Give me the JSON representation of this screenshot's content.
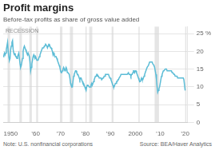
{
  "chart_data": {
    "type": "line",
    "title": "Profit margins",
    "subtitle": "Before-tax profits as share of gross value added",
    "note": "Note: U.S. nonfinancial corporations",
    "source": "Source: BEA/Haver Analytics",
    "grid": true,
    "color": "#5bbcd6",
    "xlim": [
      1947,
      2021
    ],
    "xticks": [
      1950,
      {
        "value": 1960,
        "label": "’60"
      },
      {
        "value": 1970,
        "label": "’70"
      },
      {
        "value": 1980,
        "label": "’80"
      },
      {
        "value": 1990,
        "label": "’90"
      },
      2000,
      {
        "value": 2010,
        "label": "’10"
      },
      {
        "value": 2020,
        "label": "’20"
      }
    ],
    "ylim": [
      0,
      27
    ],
    "yticks": [
      0,
      5,
      10,
      15,
      20,
      {
        "value": 25,
        "label": "25 %"
      }
    ],
    "recession": {
      "label": "RECESSION",
      "color": "#d3d3d3",
      "bands": [
        [
          1948.75,
          1949.75
        ],
        [
          1953.5,
          1954.5
        ],
        [
          1957.5,
          1958.5
        ],
        [
          1960.25,
          1961.0
        ],
        [
          1969.75,
          1970.75
        ],
        [
          1973.75,
          1975.0
        ],
        [
          1980.0,
          1980.5
        ],
        [
          1981.5,
          1982.75
        ],
        [
          1990.5,
          1991.25
        ],
        [
          2001.25,
          2001.75
        ],
        [
          2007.75,
          2009.5
        ],
        [
          2020.0,
          2020.5
        ]
      ]
    },
    "x": [
      1947.0,
      1947.25,
      1947.5,
      1947.75,
      1948.0,
      1948.25,
      1948.5,
      1948.75,
      1949.0,
      1949.25,
      1949.5,
      1949.75,
      1950.0,
      1950.25,
      1950.5,
      1950.75,
      1951.0,
      1951.25,
      1951.5,
      1951.75,
      1952.0,
      1952.25,
      1952.5,
      1952.75,
      1953.0,
      1953.25,
      1953.5,
      1953.75,
      1954.0,
      1954.25,
      1954.5,
      1954.75,
      1955.0,
      1955.25,
      1955.5,
      1955.75,
      1956.0,
      1956.25,
      1956.5,
      1956.75,
      1957.0,
      1957.25,
      1957.5,
      1957.75,
      1958.0,
      1958.25,
      1958.5,
      1958.75,
      1959.0,
      1959.25,
      1959.5,
      1959.75,
      1960.0,
      1960.25,
      1960.5,
      1960.75,
      1961.0,
      1961.25,
      1961.5,
      1961.75,
      1962.0,
      1962.25,
      1962.5,
      1962.75,
      1963.0,
      1963.25,
      1963.5,
      1963.75,
      1964.0,
      1964.25,
      1964.5,
      1964.75,
      1965.0,
      1965.25,
      1965.5,
      1965.75,
      1966.0,
      1966.25,
      1966.5,
      1966.75,
      1967.0,
      1967.25,
      1967.5,
      1967.75,
      1968.0,
      1968.25,
      1968.5,
      1968.75,
      1969.0,
      1969.25,
      1969.5,
      1969.75,
      1970.0,
      1970.25,
      1970.5,
      1970.75,
      1971.0,
      1971.25,
      1971.5,
      1971.75,
      1972.0,
      1972.25,
      1972.5,
      1972.75,
      1973.0,
      1973.25,
      1973.5,
      1973.75,
      1974.0,
      1974.25,
      1974.5,
      1974.75,
      1975.0,
      1975.25,
      1975.5,
      1975.75,
      1976.0,
      1976.25,
      1976.5,
      1976.75,
      1977.0,
      1977.25,
      1977.5,
      1977.75,
      1978.0,
      1978.25,
      1978.5,
      1978.75,
      1979.0,
      1979.25,
      1979.5,
      1979.75,
      1980.0,
      1980.25,
      1980.5,
      1980.75,
      1981.0,
      1981.25,
      1981.5,
      1981.75,
      1982.0,
      1982.25,
      1982.5,
      1982.75,
      1983.0,
      1983.25,
      1983.5,
      1983.75,
      1984.0,
      1984.25,
      1984.5,
      1984.75,
      1985.0,
      1985.25,
      1985.5,
      1985.75,
      1986.0,
      1986.25,
      1986.5,
      1986.75,
      1987.0,
      1987.25,
      1987.5,
      1987.75,
      1988.0,
      1988.25,
      1988.5,
      1988.75,
      1989.0,
      1989.25,
      1989.5,
      1989.75,
      1990.0,
      1990.25,
      1990.5,
      1990.75,
      1991.0,
      1991.25,
      1991.5,
      1991.75,
      1992.0,
      1992.25,
      1992.5,
      1992.75,
      1993.0,
      1993.25,
      1993.5,
      1993.75,
      1994.0,
      1994.25,
      1994.5,
      1994.75,
      1995.0,
      1995.25,
      1995.5,
      1995.75,
      1996.0,
      1996.25,
      1996.5,
      1996.75,
      1997.0,
      1997.25,
      1997.5,
      1997.75,
      1998.0,
      1998.25,
      1998.5,
      1998.75,
      1999.0,
      1999.25,
      1999.5,
      1999.75,
      2000.0,
      2000.25,
      2000.5,
      2000.75,
      2001.0,
      2001.25,
      2001.5,
      2001.75,
      2002.0,
      2002.25,
      2002.5,
      2002.75,
      2003.0,
      2003.25,
      2003.5,
      2003.75,
      2004.0,
      2004.25,
      2004.5,
      2004.75,
      2005.0,
      2005.25,
      2005.5,
      2005.75,
      2006.0,
      2006.25,
      2006.5,
      2006.75,
      2007.0,
      2007.25,
      2007.5,
      2007.75,
      2008.0,
      2008.25,
      2008.5,
      2008.75,
      2009.0,
      2009.25,
      2009.5,
      2009.75,
      2010.0,
      2010.25,
      2010.5,
      2010.75,
      2011.0,
      2011.25,
      2011.5,
      2011.75,
      2012.0,
      2012.25,
      2012.5,
      2012.75,
      2013.0,
      2013.25,
      2013.5,
      2013.75,
      2014.0,
      2014.25,
      2014.5,
      2014.75,
      2015.0,
      2015.25,
      2015.5,
      2015.75,
      2016.0,
      2016.25,
      2016.5,
      2016.75,
      2017.0,
      2017.25,
      2017.5,
      2017.75,
      2018.0,
      2018.25,
      2018.5,
      2018.75,
      2019.0,
      2019.25,
      2019.5,
      2019.75,
      2020.0
    ],
    "values": [
      18.5,
      18.8,
      19.5,
      19.0,
      19.5,
      20.5,
      21.5,
      22.5,
      20.0,
      18.5,
      17.5,
      18.0,
      20.5,
      21.5,
      22.5,
      23.0,
      20.5,
      19.5,
      19.0,
      19.5,
      18.5,
      18.5,
      18.0,
      18.5,
      19.0,
      19.5,
      18.0,
      16.5,
      15.5,
      16.0,
      17.0,
      18.0,
      20.0,
      21.0,
      21.5,
      21.0,
      20.5,
      20.0,
      19.5,
      19.0,
      19.5,
      19.5,
      18.5,
      17.0,
      14.5,
      15.5,
      16.5,
      17.5,
      18.5,
      19.0,
      18.5,
      18.0,
      18.5,
      18.0,
      17.5,
      17.5,
      17.5,
      18.0,
      18.5,
      19.0,
      19.5,
      20.0,
      20.5,
      21.0,
      21.0,
      21.0,
      21.5,
      21.5,
      22.0,
      22.0,
      21.5,
      21.0,
      21.5,
      22.0,
      22.0,
      21.5,
      21.0,
      21.0,
      20.5,
      20.0,
      19.0,
      19.5,
      19.0,
      18.5,
      18.5,
      18.5,
      18.0,
      17.5,
      17.0,
      16.5,
      16.0,
      15.5,
      14.5,
      14.0,
      14.0,
      14.5,
      15.0,
      15.5,
      15.0,
      14.5,
      15.0,
      15.5,
      15.0,
      14.0,
      14.0,
      14.0,
      13.5,
      12.5,
      11.0,
      10.5,
      10.0,
      10.0,
      11.5,
      13.0,
      13.5,
      14.0,
      14.5,
      14.5,
      14.0,
      13.5,
      13.5,
      13.0,
      12.5,
      12.0,
      12.5,
      12.5,
      12.0,
      11.5,
      11.0,
      11.0,
      10.5,
      10.0,
      9.5,
      9.0,
      10.0,
      10.5,
      10.5,
      10.5,
      10.0,
      10.0,
      10.0,
      10.5,
      11.0,
      10.5,
      11.0,
      11.5,
      12.0,
      12.5,
      13.0,
      13.0,
      13.5,
      13.5,
      13.0,
      13.0,
      12.5,
      12.5,
      12.5,
      12.5,
      12.0,
      12.0,
      12.5,
      12.5,
      13.0,
      13.0,
      13.5,
      13.5,
      13.5,
      13.5,
      13.5,
      13.5,
      13.0,
      12.5,
      12.5,
      12.0,
      11.5,
      11.0,
      10.5,
      10.0,
      10.0,
      10.5,
      11.0,
      11.0,
      11.5,
      11.5,
      12.0,
      12.0,
      12.5,
      12.5,
      13.0,
      13.5,
      13.5,
      13.5,
      13.5,
      13.5,
      13.5,
      13.5,
      13.5,
      13.5,
      13.5,
      13.5,
      13.5,
      14.0,
      13.5,
      13.5,
      13.5,
      13.0,
      13.5,
      13.5,
      14.0,
      14.5,
      14.5,
      14.0,
      14.5,
      14.5,
      14.0,
      13.5,
      13.0,
      12.5,
      12.0,
      11.5,
      11.5,
      12.0,
      12.5,
      12.0,
      12.0,
      12.5,
      13.0,
      13.5,
      14.0,
      14.5,
      15.0,
      15.5,
      15.5,
      16.0,
      16.5,
      17.0,
      17.0,
      17.0,
      17.0,
      17.0,
      16.5,
      16.5,
      16.0,
      15.5,
      14.5,
      13.5,
      12.0,
      10.0,
      8.5,
      9.0,
      9.5,
      10.0,
      11.0,
      12.0,
      13.0,
      13.5,
      14.0,
      14.5,
      14.5,
      14.5,
      15.0,
      15.0,
      15.0,
      14.5,
      14.5,
      14.5,
      14.5,
      14.5,
      14.5,
      14.5,
      14.5,
      14.0,
      14.0,
      14.0,
      13.5,
      13.5,
      13.0,
      13.0,
      13.0,
      13.0,
      12.5,
      12.5,
      12.5,
      12.5,
      12.5,
      12.5,
      12.5,
      12.5,
      12.5,
      12.5,
      12.0,
      12.0,
      9.0
    ]
  }
}
